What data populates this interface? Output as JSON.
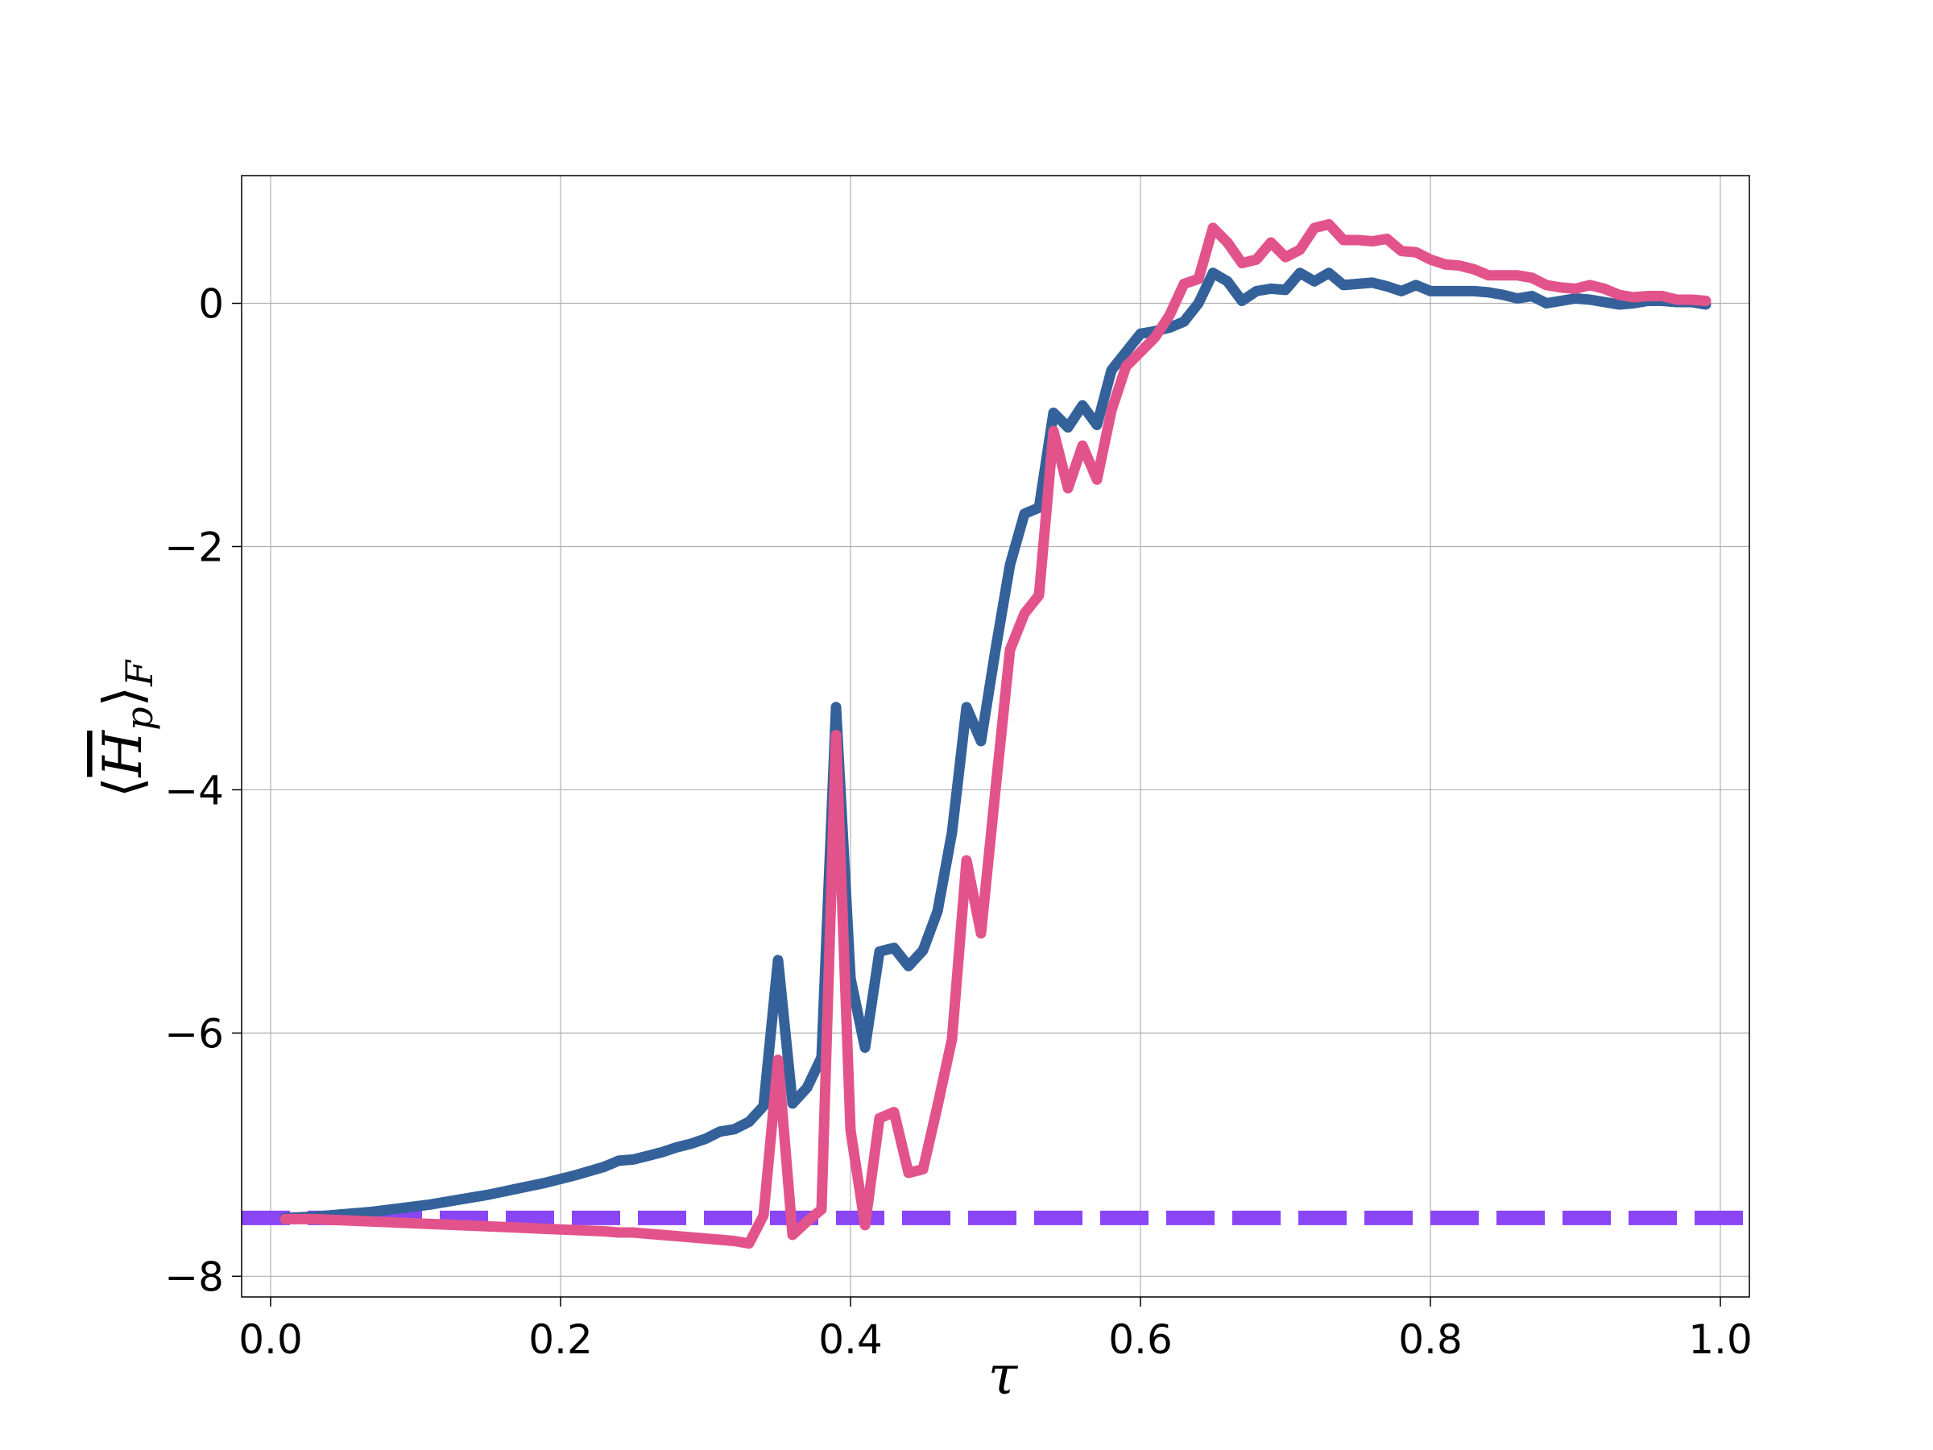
{
  "chart_data": {
    "type": "line",
    "title": "",
    "xlabel": "τ",
    "ylabel": {
      "open": "⟨",
      "symbol": "H",
      "sub": "p",
      "close": "⟩",
      "outer_sub": "F"
    },
    "xlim": [
      -0.02,
      1.02
    ],
    "ylim": [
      -8.17,
      1.05
    ],
    "grid": true,
    "legend": "none",
    "x_ticks": [
      {
        "value": 0.0,
        "label": "0.0"
      },
      {
        "value": 0.2,
        "label": "0.2"
      },
      {
        "value": 0.4,
        "label": "0.4"
      },
      {
        "value": 0.6,
        "label": "0.6"
      },
      {
        "value": 0.8,
        "label": "0.8"
      },
      {
        "value": 1.0,
        "label": "1.0"
      }
    ],
    "y_ticks": [
      {
        "value": -8,
        "label": "−8"
      },
      {
        "value": -6,
        "label": "−6"
      },
      {
        "value": -4,
        "label": "−4"
      },
      {
        "value": -2,
        "label": "−2"
      },
      {
        "value": 0,
        "label": "0"
      }
    ],
    "series": [
      {
        "color": "#34619a",
        "style": "solid",
        "x": [
          0.01,
          0.03,
          0.05,
          0.07,
          0.09,
          0.11,
          0.13,
          0.15,
          0.17,
          0.19,
          0.21,
          0.23,
          0.24,
          0.25,
          0.26,
          0.27,
          0.28,
          0.29,
          0.3,
          0.31,
          0.32,
          0.33,
          0.34,
          0.35,
          0.36,
          0.37,
          0.38,
          0.39,
          0.4,
          0.41,
          0.42,
          0.43,
          0.44,
          0.45,
          0.46,
          0.47,
          0.48,
          0.49,
          0.5,
          0.51,
          0.52,
          0.53,
          0.54,
          0.55,
          0.56,
          0.57,
          0.58,
          0.59,
          0.6,
          0.61,
          0.62,
          0.63,
          0.64,
          0.65,
          0.66,
          0.67,
          0.68,
          0.69,
          0.7,
          0.71,
          0.72,
          0.73,
          0.74,
          0.75,
          0.76,
          0.77,
          0.78,
          0.79,
          0.8,
          0.81,
          0.82,
          0.83,
          0.84,
          0.85,
          0.86,
          0.87,
          0.88,
          0.89,
          0.9,
          0.91,
          0.92,
          0.93,
          0.94,
          0.95,
          0.96,
          0.97,
          0.98,
          0.99
        ],
        "y": [
          -7.52,
          -7.51,
          -7.49,
          -7.47,
          -7.44,
          -7.41,
          -7.37,
          -7.33,
          -7.28,
          -7.23,
          -7.17,
          -7.1,
          -7.05,
          -7.04,
          -7.01,
          -6.98,
          -6.94,
          -6.91,
          -6.87,
          -6.81,
          -6.79,
          -6.73,
          -6.6,
          -5.4,
          -6.58,
          -6.45,
          -6.2,
          -3.32,
          -5.55,
          -6.12,
          -5.33,
          -5.3,
          -5.45,
          -5.32,
          -5.0,
          -4.35,
          -3.32,
          -3.6,
          -2.85,
          -2.15,
          -1.73,
          -1.68,
          -0.9,
          -1.02,
          -0.84,
          -1.0,
          -0.55,
          -0.4,
          -0.25,
          -0.23,
          -0.2,
          -0.15,
          0.0,
          0.25,
          0.18,
          0.02,
          0.1,
          0.12,
          0.11,
          0.25,
          0.18,
          0.25,
          0.15,
          0.16,
          0.17,
          0.14,
          0.1,
          0.15,
          0.1,
          0.1,
          0.1,
          0.1,
          0.09,
          0.07,
          0.04,
          0.06,
          0.0,
          0.02,
          0.04,
          0.03,
          0.01,
          -0.01,
          0.0,
          0.02,
          0.02,
          0.01,
          0.01,
          -0.01
        ]
      },
      {
        "color": "#e3538b",
        "style": "solid",
        "x": [
          0.01,
          0.03,
          0.05,
          0.07,
          0.09,
          0.11,
          0.13,
          0.15,
          0.17,
          0.19,
          0.21,
          0.23,
          0.24,
          0.25,
          0.26,
          0.27,
          0.28,
          0.29,
          0.3,
          0.31,
          0.32,
          0.33,
          0.34,
          0.35,
          0.36,
          0.37,
          0.38,
          0.39,
          0.4,
          0.41,
          0.42,
          0.43,
          0.44,
          0.45,
          0.46,
          0.47,
          0.48,
          0.49,
          0.5,
          0.51,
          0.52,
          0.53,
          0.54,
          0.55,
          0.56,
          0.57,
          0.58,
          0.59,
          0.6,
          0.61,
          0.62,
          0.63,
          0.64,
          0.65,
          0.66,
          0.67,
          0.68,
          0.69,
          0.7,
          0.71,
          0.72,
          0.73,
          0.74,
          0.75,
          0.76,
          0.77,
          0.78,
          0.79,
          0.8,
          0.81,
          0.82,
          0.83,
          0.84,
          0.85,
          0.86,
          0.87,
          0.88,
          0.89,
          0.9,
          0.91,
          0.92,
          0.93,
          0.94,
          0.95,
          0.96,
          0.97,
          0.98,
          0.99
        ],
        "y": [
          -7.53,
          -7.53,
          -7.54,
          -7.55,
          -7.56,
          -7.57,
          -7.58,
          -7.59,
          -7.6,
          -7.61,
          -7.62,
          -7.63,
          -7.64,
          -7.64,
          -7.65,
          -7.66,
          -7.67,
          -7.68,
          -7.69,
          -7.7,
          -7.71,
          -7.73,
          -7.5,
          -6.22,
          -7.66,
          -7.55,
          -7.45,
          -3.55,
          -6.8,
          -7.58,
          -6.7,
          -6.65,
          -7.15,
          -7.12,
          -6.6,
          -6.05,
          -4.58,
          -5.18,
          -4.0,
          -2.85,
          -2.55,
          -2.4,
          -1.05,
          -1.52,
          -1.17,
          -1.45,
          -0.88,
          -0.52,
          -0.4,
          -0.28,
          -0.1,
          0.16,
          0.2,
          0.62,
          0.5,
          0.33,
          0.36,
          0.5,
          0.38,
          0.44,
          0.62,
          0.65,
          0.52,
          0.52,
          0.51,
          0.53,
          0.43,
          0.42,
          0.36,
          0.32,
          0.31,
          0.28,
          0.23,
          0.23,
          0.23,
          0.21,
          0.15,
          0.13,
          0.12,
          0.15,
          0.12,
          0.07,
          0.05,
          0.06,
          0.06,
          0.03,
          0.03,
          0.02
        ]
      },
      {
        "color": "#8a45f5",
        "style": "dashed",
        "x": [
          -0.02,
          1.02
        ],
        "y": [
          -7.52,
          -7.52
        ]
      }
    ]
  }
}
